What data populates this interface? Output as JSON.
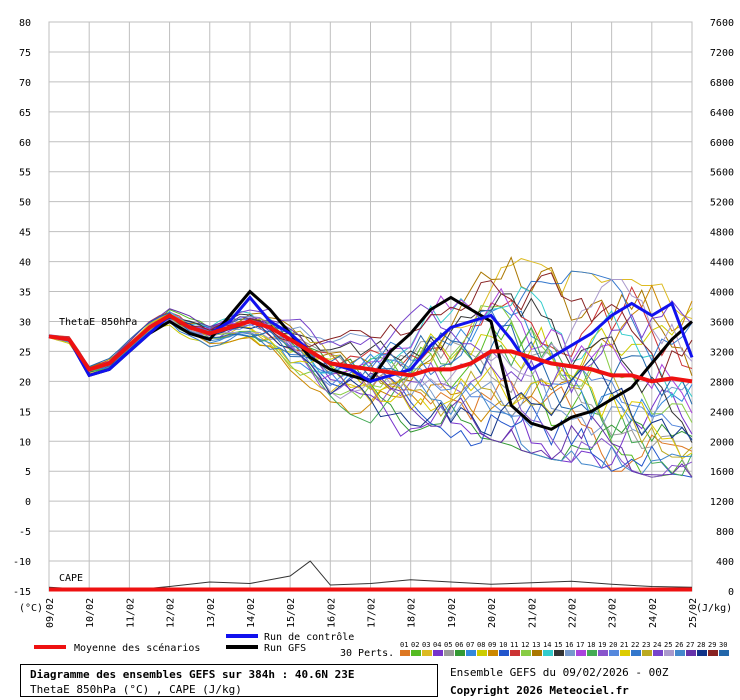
{
  "chart_data": {
    "type": "line",
    "title": "Diagramme des ensembles GEFS sur 384h : 40.6N 23E",
    "subtitle": "ThetaE 850hPa (°C) , CAPE (J/kg)",
    "left_axis": {
      "unit_label": "(°C)",
      "min": -15,
      "max": 80,
      "ticks": [
        80,
        75,
        70,
        65,
        60,
        55,
        50,
        45,
        40,
        35,
        30,
        25,
        20,
        15,
        10,
        5,
        0,
        -5,
        -10,
        -15
      ]
    },
    "right_axis": {
      "unit_label": "(J/kg)",
      "min": 0,
      "max": 7600,
      "ticks": [
        7600,
        7200,
        6800,
        6400,
        6000,
        5600,
        5200,
        4800,
        4400,
        4000,
        3600,
        3200,
        2800,
        2400,
        2000,
        1600,
        1200,
        800,
        400,
        0
      ]
    },
    "x_axis": {
      "start_day_label": "09/02",
      "labels": [
        "09/02",
        "10/02",
        "11/02",
        "12/02",
        "13/02",
        "14/02",
        "15/02",
        "16/02",
        "17/02",
        "18/02",
        "19/02",
        "20/02",
        "21/02",
        "22/02",
        "23/02",
        "24/02",
        "25/02"
      ]
    },
    "series_labels": {
      "thetae": "ThetaE 850hPa",
      "cape": "CAPE"
    },
    "series": [
      {
        "name": "Moyenne des scénarios",
        "color": "#ee1111",
        "points": [
          [
            0,
            27.5
          ],
          [
            0.5,
            27
          ],
          [
            1,
            22
          ],
          [
            1.5,
            23
          ],
          [
            2,
            26
          ],
          [
            2.5,
            29
          ],
          [
            3,
            31
          ],
          [
            3.5,
            29
          ],
          [
            4,
            28
          ],
          [
            4.5,
            29
          ],
          [
            5,
            30
          ],
          [
            5.5,
            29
          ],
          [
            6,
            27
          ],
          [
            6.5,
            25
          ],
          [
            7,
            23
          ],
          [
            7.5,
            22.5
          ],
          [
            8,
            22
          ],
          [
            8.5,
            21.5
          ],
          [
            9,
            21
          ],
          [
            9.5,
            22
          ],
          [
            10,
            22
          ],
          [
            10.5,
            23
          ],
          [
            11,
            25
          ],
          [
            11.5,
            25
          ],
          [
            12,
            24
          ],
          [
            12.5,
            23
          ],
          [
            13,
            22.5
          ],
          [
            13.5,
            22
          ],
          [
            14,
            21
          ],
          [
            14.5,
            21
          ],
          [
            15,
            20
          ],
          [
            15.5,
            20.5
          ],
          [
            16,
            20
          ]
        ]
      },
      {
        "name": "Run de contrôle",
        "color": "#1111ee",
        "points": [
          [
            0,
            27.5
          ],
          [
            0.5,
            27
          ],
          [
            1,
            21
          ],
          [
            1.5,
            22
          ],
          [
            2,
            25
          ],
          [
            2.5,
            28
          ],
          [
            3,
            31
          ],
          [
            3.5,
            29
          ],
          [
            4,
            28
          ],
          [
            4.5,
            30
          ],
          [
            5,
            34
          ],
          [
            5.5,
            30
          ],
          [
            6,
            28
          ],
          [
            6.5,
            25
          ],
          [
            7,
            23
          ],
          [
            7.5,
            22
          ],
          [
            8,
            20
          ],
          [
            8.5,
            21
          ],
          [
            9,
            22
          ],
          [
            9.5,
            26
          ],
          [
            10,
            29
          ],
          [
            10.5,
            30
          ],
          [
            11,
            31
          ],
          [
            11.5,
            27
          ],
          [
            12,
            22
          ],
          [
            12.5,
            24
          ],
          [
            13,
            26
          ],
          [
            13.5,
            28
          ],
          [
            14,
            31
          ],
          [
            14.5,
            33
          ],
          [
            15,
            31
          ],
          [
            15.5,
            33
          ],
          [
            16,
            24
          ]
        ]
      },
      {
        "name": "Run GFS",
        "color": "#000000",
        "points": [
          [
            0,
            27.5
          ],
          [
            0.5,
            27
          ],
          [
            1,
            21
          ],
          [
            1.5,
            22
          ],
          [
            2,
            25
          ],
          [
            2.5,
            28
          ],
          [
            3,
            30
          ],
          [
            3.5,
            28
          ],
          [
            4,
            27
          ],
          [
            4.5,
            31
          ],
          [
            5,
            35
          ],
          [
            5.5,
            32
          ],
          [
            6,
            28
          ],
          [
            6.5,
            24
          ],
          [
            7,
            22
          ],
          [
            7.5,
            21
          ],
          [
            8,
            20
          ],
          [
            8.5,
            25
          ],
          [
            9,
            28
          ],
          [
            9.5,
            32
          ],
          [
            10,
            34
          ],
          [
            10.5,
            32
          ],
          [
            11,
            30
          ],
          [
            11.5,
            16
          ],
          [
            12,
            13
          ],
          [
            12.5,
            12
          ],
          [
            13,
            14
          ],
          [
            13.5,
            15
          ],
          [
            14,
            17
          ],
          [
            14.5,
            19
          ],
          [
            15,
            23
          ],
          [
            15.5,
            27
          ],
          [
            16,
            30
          ]
        ]
      }
    ],
    "cape_series": {
      "name": "CAPE",
      "values_jkg": [
        [
          0,
          50
        ],
        [
          1,
          20
        ],
        [
          2,
          10
        ],
        [
          3,
          60
        ],
        [
          4,
          120
        ],
        [
          5,
          100
        ],
        [
          6,
          200
        ],
        [
          6.5,
          400
        ],
        [
          7,
          80
        ],
        [
          8,
          100
        ],
        [
          9,
          150
        ],
        [
          10,
          120
        ],
        [
          11,
          90
        ],
        [
          12,
          110
        ],
        [
          13,
          130
        ],
        [
          14,
          90
        ],
        [
          15,
          60
        ],
        [
          16,
          50
        ]
      ]
    },
    "perturbations": {
      "label": "30 Perts.",
      "ids": [
        "01",
        "02",
        "03",
        "04",
        "05",
        "06",
        "07",
        "08",
        "09",
        "10",
        "11",
        "12",
        "13",
        "14",
        "15",
        "16",
        "17",
        "18",
        "19",
        "20",
        "21",
        "22",
        "23",
        "24",
        "25",
        "26",
        "27",
        "28",
        "29",
        "30"
      ],
      "colors": [
        "#dd7722",
        "#55bb22",
        "#ddbb22",
        "#7733cc",
        "#999999",
        "#339933",
        "#3388dd",
        "#cccc00",
        "#cc8800",
        "#2255cc",
        "#cc3333",
        "#88cc44",
        "#aa7700",
        "#33cccc",
        "#333333",
        "#7799cc",
        "#aa44dd",
        "#44aa55",
        "#8855cc",
        "#5588dd",
        "#ddcc00",
        "#3377cc",
        "#bbaa22",
        "#7744cc",
        "#aa99cc",
        "#4488cc",
        "#6633aa",
        "#113388",
        "#882222",
        "#2266aa"
      ]
    }
  },
  "legend": {
    "mean_label": "Moyenne des scénarios",
    "control_label": "Run de contrôle",
    "gfs_label": "Run GFS"
  },
  "footer": {
    "source": "Ensemble GEFS du 09/02/2026 - 00Z",
    "copyright": "Copyright 2026 Meteociel.fr"
  }
}
